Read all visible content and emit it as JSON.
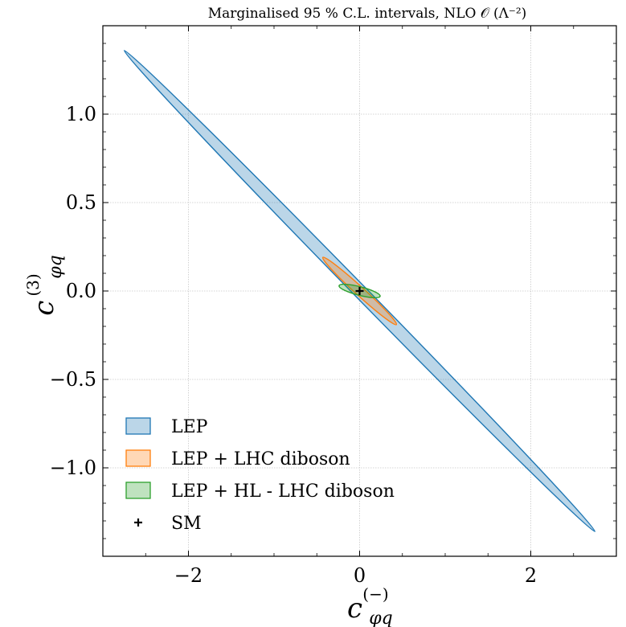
{
  "chart_data": {
    "type": "contour",
    "title": "Marginalised 95 % C.L. intervals,  NLO 𝒪 (Λ⁻²)",
    "xlabel": {
      "base": "c",
      "sub": "φq",
      "sup": "(−)"
    },
    "ylabel": {
      "base": "c",
      "sub": "φq",
      "sup": "(3)"
    },
    "xlim": [
      -3.0,
      3.0
    ],
    "ylim": [
      -1.5,
      1.5
    ],
    "xticks": [
      -2,
      0,
      2
    ],
    "xtick_labels": [
      "−2",
      "0",
      "2"
    ],
    "yticks": [
      -1.0,
      -0.5,
      0.0,
      0.5,
      1.0
    ],
    "ytick_labels": [
      "−1.0",
      "−0.5",
      "0.0",
      "0.5",
      "1.0"
    ],
    "grid": true,
    "legend_position": "lower-left",
    "series": [
      {
        "name": "LEP",
        "kind": "ellipse",
        "color": "#1f77b4",
        "center": [
          0.0,
          0.0
        ],
        "major_tip": [
          2.75,
          -1.36
        ],
        "minor_half_width": 0.075
      },
      {
        "name": "LEP + LHC diboson",
        "kind": "ellipse",
        "color": "#ff7f0e",
        "center": [
          0.0,
          0.0
        ],
        "major_tip": [
          0.43,
          -0.19
        ],
        "minor_half_width": 0.05
      },
      {
        "name": "LEP + HL - LHC diboson",
        "kind": "ellipse",
        "color": "#2ca02c",
        "center": [
          0.0,
          0.0
        ],
        "major_tip": [
          0.24,
          -0.03
        ],
        "minor_half_width": 0.05
      }
    ],
    "points": [
      {
        "name": "SM",
        "x": 0.0,
        "y": 0.0,
        "marker": "+",
        "color": "#000000"
      }
    ]
  }
}
